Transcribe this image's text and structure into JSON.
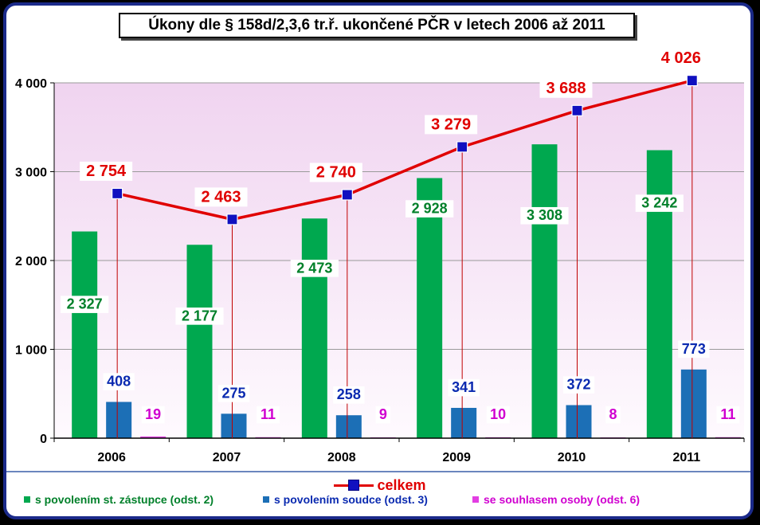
{
  "title": "Úkony dle § 158d/2,3,6 tr.ř. ukončené PČR v letech 2006 až 2011",
  "colors": {
    "background": "#000000",
    "plot_top": "#f2d8f2",
    "plot_bottom": "#ffffff",
    "green": "#00a84f",
    "blue": "#1c6fb6",
    "magenta": "#e23ee2",
    "line": "#e00000",
    "marker": "#1010c0",
    "label_green": "#00802a",
    "label_blue": "#0a2ab0",
    "label_magenta": "#d000d0",
    "label_red": "#e00000"
  },
  "chart_data": {
    "type": "bar",
    "categories": [
      "2006",
      "2007",
      "2008",
      "2009",
      "2010",
      "2011"
    ],
    "series": [
      {
        "name": "s povolením st. zástupce (odst. 2)",
        "values": [
          2327,
          2177,
          2473,
          2928,
          3308,
          3242
        ],
        "labels": [
          "2 327",
          "2 177",
          "2 473",
          "2 928",
          "3 308",
          "3 242"
        ]
      },
      {
        "name": "s povolením soudce (odst. 3)",
        "values": [
          408,
          275,
          258,
          341,
          372,
          773
        ],
        "labels": [
          "408",
          "275",
          "258",
          "341",
          "372",
          "773"
        ]
      },
      {
        "name": "se souhlasem osoby (odst. 6)",
        "values": [
          19,
          11,
          9,
          10,
          8,
          11
        ],
        "labels": [
          "19",
          "11",
          "9",
          "10",
          "8",
          "11"
        ]
      }
    ],
    "line_series": {
      "name": "celkem",
      "type": "line",
      "values": [
        2754,
        2463,
        2740,
        3279,
        3688,
        4026
      ],
      "labels": [
        "2 754",
        "2 463",
        "2 740",
        "3 279",
        "3 688",
        "4 026"
      ]
    },
    "ylim": [
      0,
      4000
    ],
    "yticks": [
      0,
      1000,
      2000,
      3000,
      4000
    ],
    "ytick_labels": [
      "0",
      "1 000",
      "2 000",
      "3 000",
      "4 000"
    ],
    "grid": true,
    "legend_position": "bottom"
  },
  "legend": {
    "main": "celkem",
    "items": [
      "s povolením st. zástupce (odst. 2)",
      "s povolením soudce (odst. 3)",
      "se souhlasem osoby (odst. 6)"
    ]
  }
}
